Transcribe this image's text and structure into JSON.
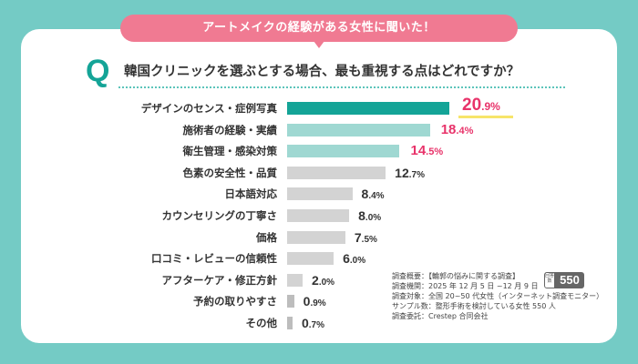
{
  "banner": "アートメイクの経験がある女性に聞いた！",
  "question": {
    "mark": "Q",
    "text": "韓国クリニックを選ぶとする場合、最も重視する点はどれですか？"
  },
  "colors": {
    "background": "#74CBC5",
    "banner": "#F07A92",
    "top_bar": "#14A497",
    "secondary_bar": "#9FD8D2",
    "other_bar": "#D3D3D3",
    "small_bar": "#BDBDBD",
    "highlight_text": "#E8336A"
  },
  "chart_data": {
    "type": "bar",
    "orientation": "horizontal",
    "title": "韓国クリニックを選ぶとする場合、最も重視する点はどれですか？",
    "unit": "%",
    "categories": [
      "デザインのセンス・症例写真",
      "施術者の経験・実績",
      "衛生管理・感染対策",
      "色素の安全性・品質",
      "日本語対応",
      "カウンセリングの丁寧さ",
      "価格",
      "口コミ・レビューの信頼性",
      "アフターケア・修正方針",
      "予約の取りやすさ",
      "その他"
    ],
    "values": [
      20.9,
      18.4,
      14.5,
      12.7,
      8.4,
      8.0,
      7.5,
      6.0,
      2.0,
      0.9,
      0.7
    ],
    "value_labels": [
      {
        "int": "20",
        "dec": ".9%"
      },
      {
        "int": "18",
        "dec": ".4%"
      },
      {
        "int": "14",
        "dec": ".5%"
      },
      {
        "int": "12",
        "dec": ".7%"
      },
      {
        "int": "8",
        "dec": ".4%"
      },
      {
        "int": "8",
        "dec": ".0%"
      },
      {
        "int": "7",
        "dec": ".5%"
      },
      {
        "int": "6",
        "dec": ".0%"
      },
      {
        "int": "2",
        "dec": ".0%"
      },
      {
        "int": "0",
        "dec": ".9%"
      },
      {
        "int": "0",
        "dec": ".7%"
      }
    ],
    "xlim": [
      0,
      21
    ],
    "grid": false,
    "legend": "none"
  },
  "survey": {
    "lines": [
      "調査概要：【輪郭の悩みに関する調査】",
      "調査機関：2025 年 12 月 5 日 ~12 月 9 日",
      "調査対象：全国 20~50 代女性（インターネット調査モニター）",
      "サンプル数：整形手術を検討している女性 550 人",
      "調査委託：Crestep 合同会社"
    ],
    "badge_label": "回答数",
    "badge_value": "550"
  }
}
